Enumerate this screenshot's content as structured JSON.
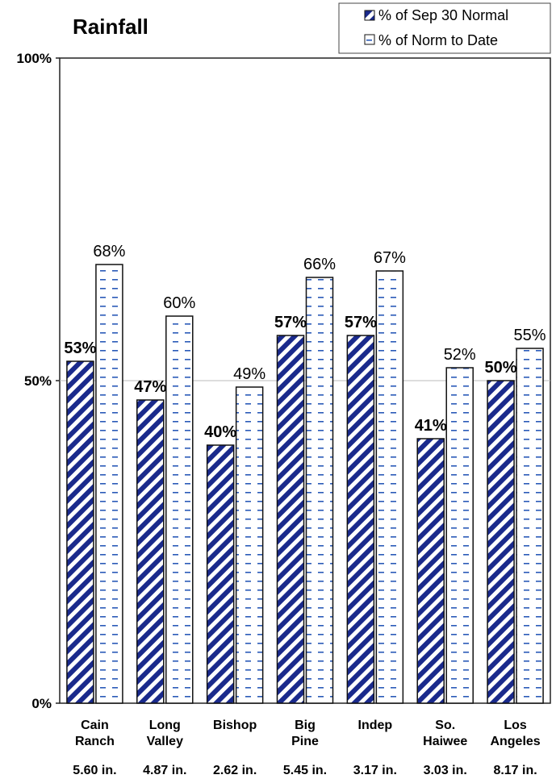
{
  "chart_data": {
    "type": "bar",
    "title": "Rainfall",
    "categories": [
      [
        "Cain",
        "Ranch"
      ],
      [
        "Long",
        "Valley"
      ],
      [
        "Bishop"
      ],
      [
        "Big",
        "Pine"
      ],
      [
        "Indep"
      ],
      [
        "So.",
        "Haiwee"
      ],
      [
        "Los",
        "Angeles"
      ]
    ],
    "rainfall_to_date": [
      "5.60 in.",
      "4.87 in.",
      "2.62 in.",
      "5.45 in.",
      "3.17 in.",
      "3.03 in.",
      "8.17 in."
    ],
    "series": [
      {
        "name": "% of Sep 30 Normal",
        "values": [
          53,
          47,
          40,
          57,
          57,
          41,
          50
        ],
        "labels": [
          "53%",
          "47%",
          "40%",
          "57%",
          "57%",
          "41%",
          "50%"
        ],
        "pattern": "diagonal-stripes",
        "color": "#1a2a8c"
      },
      {
        "name": "% of Norm to Date",
        "values": [
          68,
          60,
          49,
          66,
          67,
          52,
          55
        ],
        "labels": [
          "68%",
          "60%",
          "49%",
          "66%",
          "67%",
          "52%",
          "55%"
        ],
        "pattern": "dashes",
        "color": "#2a5ab8"
      }
    ],
    "yticks": [
      "0%",
      "50%",
      "100%"
    ],
    "ylim": [
      0,
      100
    ],
    "legend_position": "top-right",
    "grid": true
  }
}
